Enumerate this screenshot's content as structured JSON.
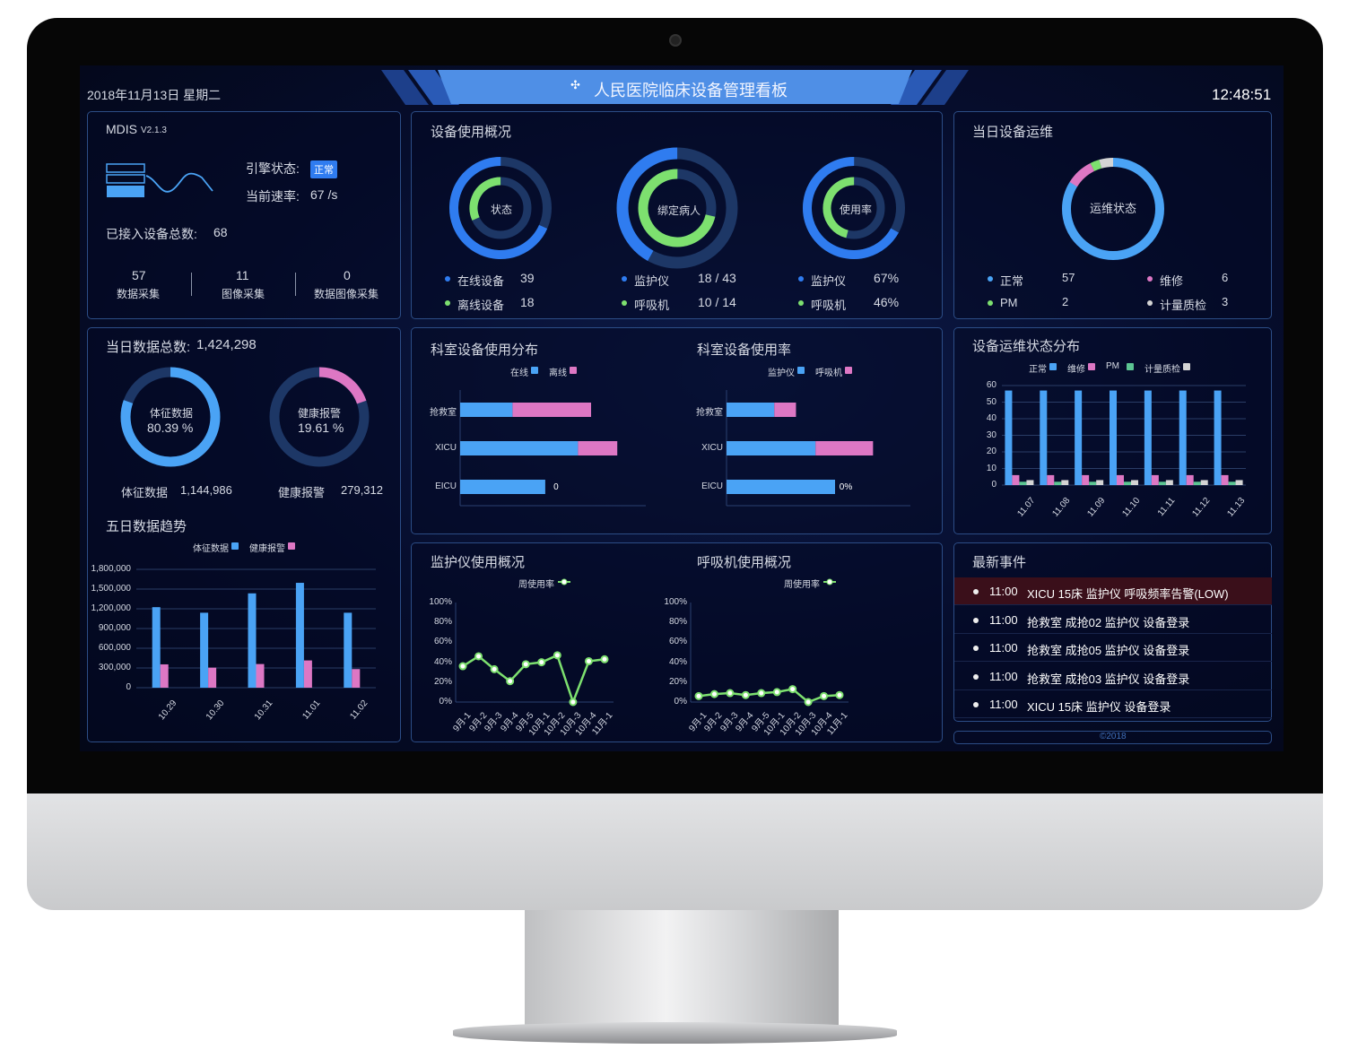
{
  "header": {
    "date": "2018年11月13日 星期二",
    "title": "人民医院临床设备管理看板",
    "time": "12:48:51",
    "logo_icon": "sparkle-icon"
  },
  "colors": {
    "blue": "#4aa3f5",
    "blue_dark": "#2f7cf0",
    "pink": "#dd77c4",
    "green": "#7de06f",
    "gray": "#d4d4d4",
    "track": "#1d3766",
    "panel_border": "#2c4d86",
    "alert_row": "#3a0f1a",
    "header_bar": "#4f8fe6"
  },
  "system": {
    "name": "MDIS",
    "version": "V2.1.3",
    "engine_label": "引擎状态:",
    "engine_status": "正常",
    "rate_label": "当前速率:",
    "rate_value": "67 /s",
    "total_label": "已接入设备总数:",
    "total_value": "68",
    "stats": [
      {
        "value": "57",
        "label": "数据采集"
      },
      {
        "value": "11",
        "label": "图像采集"
      },
      {
        "value": "0",
        "label": "数据图像采集"
      }
    ]
  },
  "usage": {
    "title": "设备使用概况",
    "donuts": [
      {
        "center": "状态",
        "outer": 0.684,
        "inner": 0.316,
        "rows": [
          {
            "label": "在线设备",
            "value": "39"
          },
          {
            "label": "离线设备",
            "value": "18"
          }
        ]
      },
      {
        "center": "绑定病人",
        "outer": 0.419,
        "inner": 0.714,
        "rows": [
          {
            "label": "监护仪",
            "value": "18 / 43"
          },
          {
            "label": "呼吸机",
            "value": "10 / 14"
          }
        ]
      },
      {
        "center": "使用率",
        "outer": 0.67,
        "inner": 0.46,
        "rows": [
          {
            "label": "监护仪",
            "value": "67%"
          },
          {
            "label": "呼吸机",
            "value": "46%"
          }
        ]
      }
    ]
  },
  "ops_today": {
    "title": "当日设备运维",
    "center": "运维状态",
    "items": [
      {
        "label": "正常",
        "value": "57",
        "color": "#4aa3f5"
      },
      {
        "label": "维修",
        "value": "6",
        "color": "#dd77c4"
      },
      {
        "label": "PM",
        "value": "2",
        "color": "#7de06f"
      },
      {
        "label": "计量质检",
        "value": "3",
        "color": "#d4d4d4"
      }
    ]
  },
  "daily": {
    "title_label": "当日数据总数:",
    "title_value": "1,424,298",
    "donuts": [
      {
        "center_label": "体征数据",
        "center_value": "80.39 %",
        "fraction": 0.8039,
        "label": "体征数据",
        "value": "1,144,986",
        "color": "#4aa3f5"
      },
      {
        "center_label": "健康报警",
        "center_value": "19.61 %",
        "fraction": 0.1961,
        "label": "健康报警",
        "value": "279,312",
        "color": "#dd77c4"
      }
    ]
  },
  "chart_data": [
    {
      "id": "five_day",
      "type": "bar",
      "title": "五日数据趋势",
      "categories": [
        "10.29",
        "10.30",
        "10.31",
        "11.01",
        "11.02"
      ],
      "ylim": [
        0,
        1800000
      ],
      "yticks": [
        "0",
        "300,000",
        "600,000",
        "900,000",
        "1,200,000",
        "1,500,000",
        "1,800,000"
      ],
      "series": [
        {
          "name": "体征数据",
          "values": [
            1225000,
            1140000,
            1435000,
            1595000,
            1140000
          ]
        },
        {
          "name": "健康报警",
          "values": [
            355000,
            305000,
            360000,
            415000,
            283000
          ]
        }
      ]
    },
    {
      "id": "dept_dist",
      "type": "bar",
      "orientation": "horizontal",
      "stacked": true,
      "title": "科室设备使用分布",
      "categories": [
        "抢救室",
        "XICU",
        "EICU"
      ],
      "series": [
        {
          "name": "在线",
          "values": [
            8,
            18,
            13
          ]
        },
        {
          "name": "离线",
          "values": [
            12,
            6,
            0
          ]
        }
      ]
    },
    {
      "id": "dept_rate",
      "type": "bar",
      "orientation": "horizontal",
      "stacked": true,
      "title": "科室设备使用率",
      "categories": [
        "抢救室",
        "XICU",
        "EICU"
      ],
      "series": [
        {
          "name": "监护仪",
          "values": [
            44,
            82,
            100
          ],
          "labels": [
            "44%",
            "82%",
            "100%"
          ]
        },
        {
          "name": "呼吸机",
          "values": [
            20,
            53,
            0
          ],
          "labels": [
            "20%",
            "53%",
            "0%"
          ]
        }
      ]
    },
    {
      "id": "ops_dist",
      "type": "bar",
      "title": "设备运维状态分布",
      "categories": [
        "11.07",
        "11.08",
        "11.09",
        "11.10",
        "11.11",
        "11.12",
        "11.13"
      ],
      "ylim": [
        0,
        60
      ],
      "yticks": [
        "0",
        "10",
        "20",
        "30",
        "40",
        "50",
        "60"
      ],
      "series": [
        {
          "name": "正常",
          "values": [
            57,
            57,
            57,
            57,
            57,
            57,
            57
          ]
        },
        {
          "name": "维修",
          "values": [
            6,
            6,
            6,
            6,
            6,
            6,
            6
          ]
        },
        {
          "name": "PM",
          "values": [
            2,
            2,
            2,
            2,
            2,
            2,
            2
          ]
        },
        {
          "name": "计量质检",
          "values": [
            3,
            3,
            3,
            3,
            3,
            3,
            3
          ]
        }
      ]
    },
    {
      "id": "monitor_usage",
      "type": "line",
      "title": "监护仪使用概况",
      "categories": [
        "9月-1",
        "9月-2",
        "9月-3",
        "9月-4",
        "9月-5",
        "10月-1",
        "10月-2",
        "10月-3",
        "10月-4",
        "11月-1"
      ],
      "ylim": [
        0,
        100
      ],
      "yticks": [
        "0%",
        "20%",
        "40%",
        "60%",
        "80%",
        "100%"
      ],
      "series": [
        {
          "name": "周使用率",
          "values": [
            36,
            46,
            33,
            21,
            38,
            40,
            47,
            0,
            41,
            43
          ]
        }
      ]
    },
    {
      "id": "vent_usage",
      "type": "line",
      "title": "呼吸机使用概况",
      "categories": [
        "9月-1",
        "9月-2",
        "9月-3",
        "9月-4",
        "9月-5",
        "10月-1",
        "10月-2",
        "10月-3",
        "10月-4",
        "11月-1"
      ],
      "ylim": [
        0,
        100
      ],
      "yticks": [
        "0%",
        "20%",
        "40%",
        "60%",
        "80%",
        "100%"
      ],
      "series": [
        {
          "name": "周使用率",
          "values": [
            6,
            8,
            9,
            7,
            9,
            10,
            13,
            0,
            6,
            7
          ]
        }
      ]
    }
  ],
  "events": {
    "title": "最新事件",
    "items": [
      {
        "time": "11:00",
        "text": "XICU 15床 监护仪 呼吸频率告警(LOW)",
        "alert": true
      },
      {
        "time": "11:00",
        "text": "抢救室 成抢02 监护仪 设备登录"
      },
      {
        "time": "11:00",
        "text": "抢救室 成抢05 监护仪 设备登录"
      },
      {
        "time": "11:00",
        "text": "抢救室 成抢03 监护仪 设备登录"
      },
      {
        "time": "11:00",
        "text": "XICU 15床 监护仪 设备登录"
      }
    ]
  },
  "footer": {
    "copyright": "©2018"
  }
}
